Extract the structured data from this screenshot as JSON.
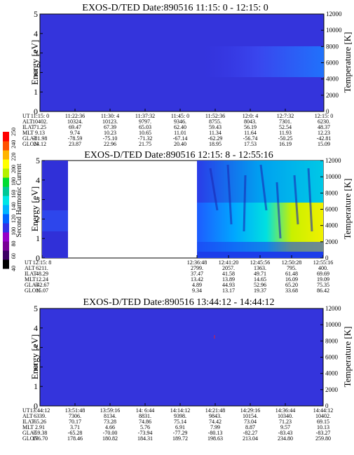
{
  "chart_data": [
    {
      "type": "heatmap",
      "title": "EXOS-D/TED   Date:890516  11:15: 0 - 12:15: 0",
      "ylabel": "Energy [eV]",
      "y2label": "Temperature [K]",
      "ylim": [
        0,
        5
      ],
      "y2lim": [
        0,
        12000
      ],
      "yticks": [
        "0",
        "1",
        "2",
        "3",
        "4",
        "5"
      ],
      "y2ticks": [
        "0",
        "2000",
        "4000",
        "6000",
        "8000",
        "10000",
        "12000"
      ],
      "row_labels": [
        "UT",
        "ALT",
        "ILAT",
        "MLT",
        "GLAT",
        "GLON"
      ],
      "columns": [
        [
          "11:15: 0",
          "10402.",
          "71.25",
          "9.13",
          "-81.98",
          "24.12"
        ],
        [
          "11:22:36",
          "10324.",
          "69.47",
          "9.74",
          "-78.59",
          "23.87"
        ],
        [
          "11:30: 4",
          "10123.",
          "67.39",
          "10.23",
          "-75.10",
          "22.96"
        ],
        [
          "11:37:32",
          "9797.",
          "65.03",
          "10.65",
          "-71.32",
          "21.75"
        ],
        [
          "11:45: 0",
          "9346.",
          "62.40",
          "11.01",
          "-67.14",
          "20.40"
        ],
        [
          "11:52:36",
          "8755.",
          "59.43",
          "11.34",
          "-62.29",
          "18.95"
        ],
        [
          "12:0: 4",
          "8043.",
          "56.19",
          "11.64",
          "-56.74",
          "17.53"
        ],
        [
          "12:7:32",
          "7301.",
          "52.54",
          "11.93",
          "-50.25",
          "16.19"
        ],
        [
          "12:15: 0",
          "6230.",
          "48.37",
          "12.23",
          "-42.81",
          "15.09"
        ]
      ]
    },
    {
      "type": "heatmap",
      "title": "EXOS-D/TED   Date:890516  12:15: 8 - 12:55:16",
      "ylabel": "Energy [eV]",
      "y2label": "Temperature [K]",
      "ylim": [
        0,
        5
      ],
      "y2lim": [
        0,
        12000
      ],
      "yticks": [
        "0",
        "1",
        "2",
        "3",
        "4",
        "5"
      ],
      "y2ticks": [
        "0",
        "2000",
        "4000",
        "6000",
        "8000",
        "10000",
        "12000"
      ],
      "row_labels": [
        "UT",
        "ALT",
        "ILAT",
        "MLT",
        "GLAT",
        "GLON"
      ],
      "columns": [
        [
          "12:15: 8",
          "6211.",
          "48.29",
          "12.24",
          "-42.67",
          "15.07"
        ],
        [
          "12:36:48",
          "2799.",
          "37.47",
          "13.42",
          "4.89",
          "9.34"
        ],
        [
          "12:41:20",
          "2057.",
          "41.58",
          "13.89",
          "44.93",
          "13.17"
        ],
        [
          "12:45:56",
          "1363.",
          "49.71",
          "14.65",
          "52.96",
          "19.37"
        ],
        [
          "12:50:28",
          "795.",
          "61.48",
          "16.09",
          "65.20",
          "33.68"
        ],
        [
          "12:55:16",
          "400.",
          "69.69",
          "19.09",
          "75.35",
          "86.42"
        ]
      ],
      "colorbar": {
        "label": "Second Harmonic Current",
        "ticks": [
          "40",
          "60",
          "80",
          "100",
          "120",
          "140",
          "160",
          "180",
          "200",
          "220",
          "240",
          "250"
        ]
      }
    },
    {
      "type": "heatmap",
      "title": "EXOS-D/TED   Date:890516  13:44:12 - 14:44:12",
      "ylabel": "Energy [eV]",
      "y2label": "Temperature [K]",
      "ylim": [
        0,
        5
      ],
      "y2lim": [
        0,
        12000
      ],
      "yticks": [
        "0",
        "1",
        "2",
        "3",
        "4",
        "5"
      ],
      "y2ticks": [
        "0",
        "2000",
        "4000",
        "6000",
        "8000",
        "10000",
        "12000"
      ],
      "row_labels": [
        "UT",
        "ALT",
        "ILAT",
        "MLT",
        "GLAT",
        "GLON"
      ],
      "columns": [
        [
          "13:44:12",
          "6339.",
          "65.26",
          "2.91",
          "-59.38",
          "176.70"
        ],
        [
          "13:51:48",
          "7306.",
          "70.17",
          "3.71",
          "-65.28",
          "178.46"
        ],
        [
          "13:59:16",
          "8134.",
          "73.28",
          "4.66",
          "-70.00",
          "180.82"
        ],
        [
          "14: 6:44",
          "8831.",
          "74.86",
          "5.76",
          "-73.94",
          "184.31"
        ],
        [
          "14:14:12",
          "9398.",
          "75.14",
          "6.91",
          "-77.29",
          "189.72"
        ],
        [
          "14:21:48",
          "9843.",
          "74.42",
          "7.99",
          "-80.13",
          "198.63"
        ],
        [
          "14:29:16",
          "10154.",
          "73.04",
          "8.87",
          "-82.27",
          "213.04"
        ],
        [
          "14:36:44",
          "10340.",
          "71.23",
          "9.57",
          "-83.43",
          "234.80"
        ],
        [
          "14:44:12",
          "10402.",
          "69.15",
          "10.13",
          "-83.27",
          "259.80"
        ]
      ]
    }
  ],
  "colors": {
    "background": "#3434dc",
    "colorbar": [
      "#000000",
      "#3c0064",
      "#780096",
      "#9600c8",
      "#3232e6",
      "#0064ff",
      "#00b4ff",
      "#00e6e6",
      "#00c896",
      "#00dc32",
      "#b4f000",
      "#ffff00",
      "#ffb400",
      "#ff5000",
      "#ff0000"
    ]
  }
}
